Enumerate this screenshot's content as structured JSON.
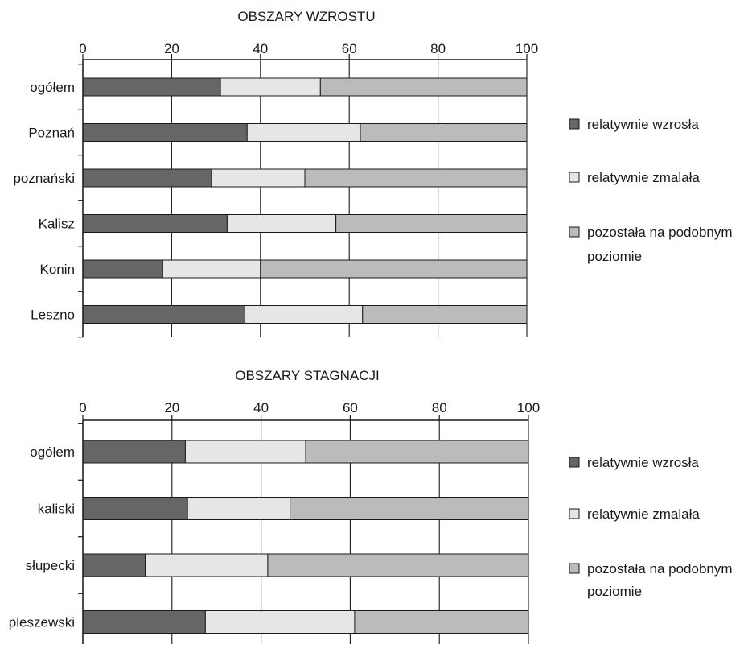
{
  "colors": {
    "increased": "#666666",
    "decreased": "#e6e6e6",
    "same": "#bbbbbb",
    "axis": "#1a1a1a"
  },
  "chart_data": [
    {
      "type": "bar",
      "orientation": "horizontal",
      "stacked": true,
      "title": "OBSZARY WZROSTU",
      "xlim": [
        0,
        100
      ],
      "xticks": [
        "0",
        "20",
        "40",
        "60",
        "80",
        "100"
      ],
      "grid": "vertical",
      "legend_position": "right",
      "categories": [
        "ogółem",
        "Poznań",
        "poznański",
        "Kalisz",
        "Konin",
        "Leszno"
      ],
      "series": [
        {
          "name": "relatywnie wzrosła",
          "color": "#666666",
          "values": [
            31,
            37,
            29,
            32.5,
            18,
            36.5
          ]
        },
        {
          "name": "relatywnie zmalała",
          "color": "#e6e6e6",
          "values": [
            22.5,
            25.5,
            21,
            24.5,
            22,
            26.5
          ]
        },
        {
          "name": "pozostała na podobnym poziomie",
          "color": "#bbbbbb",
          "values": [
            46.5,
            37.5,
            50,
            43,
            60,
            37
          ]
        }
      ],
      "legend_lines": [
        [
          "relatywnie wzrosła"
        ],
        [
          "relatywnie zmalała"
        ],
        [
          "pozostała na podobnym",
          "poziomie"
        ]
      ]
    },
    {
      "type": "bar",
      "orientation": "horizontal",
      "stacked": true,
      "title": "OBSZARY STAGNACJI",
      "xlim": [
        0,
        100
      ],
      "xticks": [
        "0",
        "20",
        "40",
        "60",
        "80",
        "100"
      ],
      "grid": "vertical",
      "legend_position": "right",
      "categories": [
        "ogółem",
        "kaliski",
        "słupecki",
        "pleszewski"
      ],
      "series": [
        {
          "name": "relatywnie wzrosła",
          "color": "#666666",
          "values": [
            23,
            23.5,
            14,
            27.5
          ]
        },
        {
          "name": "relatywnie zmalała",
          "color": "#e6e6e6",
          "values": [
            27,
            23,
            27.5,
            33.5
          ]
        },
        {
          "name": "pozostała na podobnym poziomie",
          "color": "#bbbbbb",
          "values": [
            50,
            53.5,
            58.5,
            39
          ]
        }
      ],
      "legend_lines": [
        [
          "relatywnie wzrosła"
        ],
        [
          "relatywnie zmalała"
        ],
        [
          "pozostała na podobnym",
          "poziomie"
        ]
      ]
    }
  ]
}
